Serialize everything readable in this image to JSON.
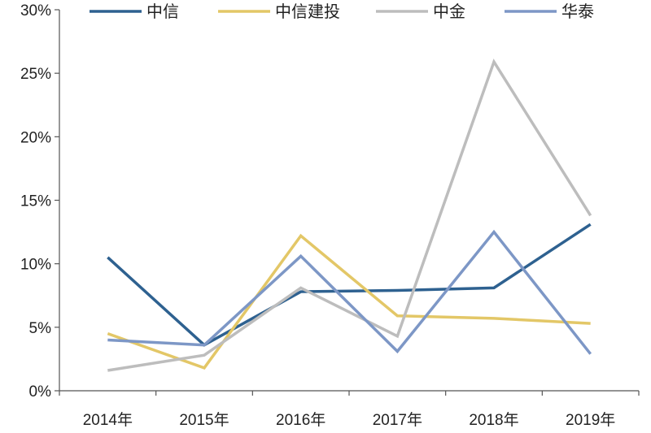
{
  "chart_data": {
    "type": "line",
    "categories": [
      "2014年",
      "2015年",
      "2016年",
      "2017年",
      "2018年",
      "2019年"
    ],
    "y_ticks": [
      "0%",
      "5%",
      "10%",
      "15%",
      "20%",
      "25%",
      "30%"
    ],
    "ylim": [
      0,
      30
    ],
    "grid": false,
    "legend_position": "top",
    "series": [
      {
        "name": "中信",
        "color": "#2e6190",
        "values": [
          10.5,
          3.6,
          7.8,
          7.9,
          8.1,
          13.1
        ]
      },
      {
        "name": "中信建投",
        "color": "#e3c767",
        "values": [
          4.5,
          1.8,
          12.2,
          5.9,
          5.7,
          5.3
        ]
      },
      {
        "name": "中金",
        "color": "#bdbdbd",
        "values": [
          1.6,
          2.8,
          8.1,
          4.3,
          25.9,
          13.8
        ]
      },
      {
        "name": "华泰",
        "color": "#7d97c6",
        "values": [
          4.0,
          3.6,
          10.6,
          3.1,
          12.5,
          2.9
        ]
      }
    ]
  }
}
